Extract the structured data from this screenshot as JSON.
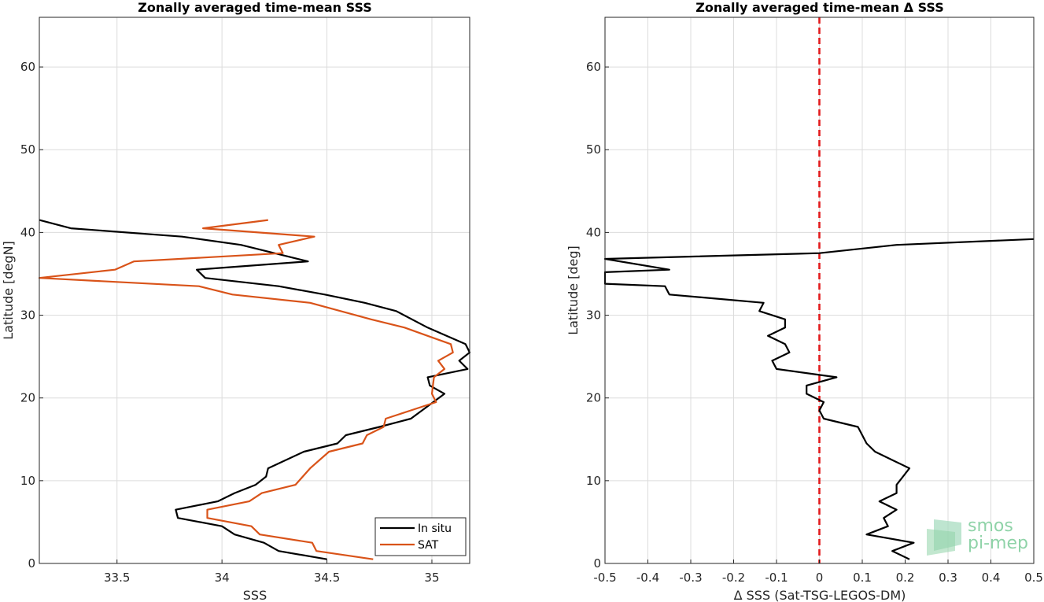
{
  "chart_data": [
    {
      "type": "line",
      "title": "Zonally averaged time-mean SSS",
      "xlabel": "SSS",
      "ylabel": "Latitude [degN]",
      "xlim": [
        33.13,
        35.18
      ],
      "ylim": [
        0,
        66
      ],
      "xticks": [
        33.5,
        34,
        34.5,
        35
      ],
      "xtick_labels": [
        "33.5",
        "34",
        "34.5",
        "35"
      ],
      "yticks": [
        0,
        10,
        20,
        30,
        40,
        50,
        60
      ],
      "ytick_labels": [
        "0",
        "10",
        "20",
        "30",
        "40",
        "50",
        "60"
      ],
      "grid": true,
      "legend": "bottom-right",
      "series": [
        {
          "name": "In situ",
          "color": "#000000",
          "x": [
            34.5,
            34.27,
            34.2,
            34.06,
            34.0,
            33.79,
            33.78,
            33.98,
            34.06,
            34.16,
            34.21,
            34.22,
            34.39,
            34.55,
            34.59,
            34.75,
            34.9,
            35.06,
            34.99,
            34.98,
            35.17,
            35.13,
            35.18,
            35.16,
            35.07,
            34.98,
            34.83,
            34.68,
            34.49,
            34.27,
            33.92,
            33.88,
            34.41,
            34.09,
            33.81,
            33.28,
            33.13
          ],
          "y": [
            0.5,
            1.5,
            2.5,
            3.5,
            4.5,
            5.5,
            6.5,
            7.5,
            8.5,
            9.5,
            10.5,
            11.5,
            13.5,
            14.5,
            15.5,
            16.5,
            17.5,
            20.5,
            21.5,
            22.5,
            23.5,
            24.5,
            25.5,
            26.5,
            27.5,
            28.5,
            30.5,
            31.5,
            32.5,
            33.5,
            34.5,
            35.5,
            36.5,
            38.5,
            39.5,
            40.5,
            41.5
          ]
        },
        {
          "name": "SAT",
          "color": "#d95319",
          "x": [
            34.72,
            34.45,
            34.43,
            34.18,
            34.14,
            33.93,
            33.93,
            34.13,
            34.19,
            34.35,
            34.42,
            34.51,
            34.67,
            34.69,
            34.77,
            34.78,
            34.9,
            35.02,
            35.0,
            35.01,
            35.06,
            35.03,
            35.1,
            35.09,
            34.98,
            34.87,
            34.71,
            34.42,
            34.05,
            33.89,
            33.13,
            33.49,
            33.58,
            34.29,
            34.27,
            34.44,
            33.91,
            34.22
          ],
          "y": [
            0.5,
            1.5,
            2.5,
            3.5,
            4.5,
            5.5,
            6.5,
            7.5,
            8.5,
            9.5,
            11.5,
            13.5,
            14.5,
            15.5,
            16.5,
            17.5,
            18.5,
            19.5,
            20.5,
            22.5,
            23.5,
            24.5,
            25.5,
            26.5,
            27.5,
            28.5,
            29.5,
            31.5,
            32.5,
            33.5,
            34.5,
            35.5,
            36.5,
            37.5,
            38.5,
            39.5,
            40.5,
            41.5
          ]
        }
      ]
    },
    {
      "type": "line",
      "title": "Zonally averaged time-mean Δ SSS",
      "xlabel": "Δ SSS (Sat-TSG-LEGOS-DM)",
      "ylabel": "Latitude [deg]",
      "xlim": [
        -0.5,
        0.5
      ],
      "ylim": [
        0,
        66
      ],
      "xticks": [
        -0.5,
        -0.4,
        -0.3,
        -0.2,
        -0.1,
        0,
        0.1,
        0.2,
        0.3,
        0.4,
        0.5
      ],
      "xtick_labels": [
        "-0.5",
        "-0.4",
        "-0.3",
        "-0.2",
        "-0.1",
        "0",
        "0.1",
        "0.2",
        "0.3",
        "0.4",
        "0.5"
      ],
      "yticks": [
        0,
        10,
        20,
        30,
        40,
        50,
        60
      ],
      "ytick_labels": [
        "0",
        "10",
        "20",
        "30",
        "40",
        "50",
        "60"
      ],
      "grid": true,
      "zero_line": {
        "x": 0,
        "color": "#e31a1c",
        "style": "dashed"
      },
      "series": [
        {
          "color": "#000000",
          "x": [
            0.21,
            0.17,
            0.22,
            0.11,
            0.16,
            0.15,
            0.18,
            0.14,
            0.18,
            0.18,
            0.21,
            0.17,
            0.13,
            0.11,
            0.09,
            0.01,
            0.0,
            0.01,
            -0.03,
            -0.03,
            0.04,
            -0.1,
            -0.11,
            -0.07,
            -0.08,
            -0.12,
            -0.08,
            -0.08,
            -0.14,
            -0.13,
            -0.35,
            -0.36,
            -0.5,
            -0.5,
            -0.35,
            -0.5,
            0.0,
            0.18,
            0.5
          ],
          "y": [
            0.5,
            1.5,
            2.5,
            3.5,
            4.5,
            5.5,
            6.5,
            7.5,
            8.5,
            9.5,
            11.5,
            12.5,
            13.5,
            14.5,
            16.5,
            17.5,
            18.5,
            19.5,
            20.5,
            21.5,
            22.5,
            23.5,
            24.5,
            25.5,
            26.5,
            27.5,
            28.5,
            29.5,
            30.5,
            31.5,
            32.5,
            33.5,
            33.8,
            35.2,
            35.5,
            36.8,
            37.5,
            38.5,
            39.2
          ]
        }
      ]
    }
  ],
  "logo": {
    "line1": "smos",
    "line2": "pi-mep"
  }
}
